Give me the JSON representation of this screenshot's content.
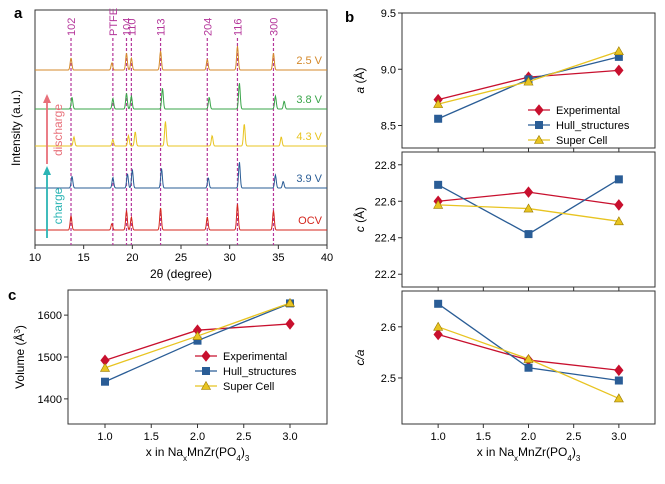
{
  "colors": {
    "experimental": "#c8102e",
    "hull": "#2a5d96",
    "supercell": "#e8c421",
    "peak_marker": "#b4359a",
    "pattern_colors": [
      "#d4261e",
      "#2a5d96",
      "#e8c421",
      "#3aa54a",
      "#d4892b"
    ],
    "charge_arrow": "#2bb5b5",
    "discharge_arrow": "#e8707a"
  },
  "panel_letters": {
    "a": "a",
    "b": "b",
    "c": "c"
  },
  "chart_data": [
    {
      "panel": "a",
      "type": "line",
      "title": "",
      "xlabel": "2θ (degree)",
      "ylabel": "Intensity (a.u.)",
      "xlim": [
        10,
        40
      ],
      "xticks": [
        "10",
        "15",
        "20",
        "25",
        "30",
        "35",
        "40"
      ],
      "xtick_values": [
        10,
        15,
        20,
        25,
        30,
        35,
        40
      ],
      "peak_labels": [
        {
          "label": "102",
          "x": 13.7
        },
        {
          "label": "PTFE",
          "x": 18.0
        },
        {
          "label": "104",
          "x": 19.4
        },
        {
          "label": "110",
          "x": 19.9
        },
        {
          "label": "113",
          "x": 22.9
        },
        {
          "label": "204",
          "x": 27.7
        },
        {
          "label": "116",
          "x": 30.8
        },
        {
          "label": "300",
          "x": 34.5
        }
      ],
      "series": [
        {
          "name": "OCV",
          "color_index": 0,
          "peaks": [
            [
              13.7,
              0.55
            ],
            [
              17.9,
              0.25
            ],
            [
              19.4,
              0.75
            ],
            [
              19.9,
              0.5
            ],
            [
              22.9,
              0.85
            ],
            [
              27.7,
              0.5
            ],
            [
              30.8,
              1.0
            ],
            [
              34.5,
              0.75
            ]
          ]
        },
        {
          "name": "3.9 V",
          "color_index": 1,
          "peaks": [
            [
              13.8,
              0.45
            ],
            [
              18.0,
              0.4
            ],
            [
              19.5,
              0.55
            ],
            [
              20.0,
              0.7
            ],
            [
              23.0,
              0.75
            ],
            [
              27.8,
              0.4
            ],
            [
              31.0,
              1.0
            ],
            [
              34.7,
              0.5
            ],
            [
              35.5,
              0.25
            ]
          ]
        },
        {
          "name": "4.3 V",
          "color_index": 2,
          "peaks": [
            [
              14.0,
              0.35
            ],
            [
              18.0,
              0.25
            ],
            [
              19.6,
              0.4
            ],
            [
              20.3,
              0.55
            ],
            [
              23.4,
              0.95
            ],
            [
              28.2,
              0.4
            ],
            [
              31.5,
              0.85
            ],
            [
              35.3,
              0.35
            ]
          ]
        },
        {
          "name": "3.8 V",
          "color_index": 3,
          "peaks": [
            [
              13.8,
              0.45
            ],
            [
              18.0,
              0.4
            ],
            [
              19.4,
              0.6
            ],
            [
              19.9,
              0.5
            ],
            [
              23.1,
              0.8
            ],
            [
              27.9,
              0.45
            ],
            [
              31.0,
              1.0
            ],
            [
              34.7,
              0.5
            ],
            [
              35.6,
              0.3
            ]
          ]
        },
        {
          "name": "2.5 V",
          "color_index": 4,
          "peaks": [
            [
              13.7,
              0.5
            ],
            [
              17.9,
              0.3
            ],
            [
              19.4,
              0.7
            ],
            [
              19.9,
              0.5
            ],
            [
              22.9,
              0.8
            ],
            [
              27.7,
              0.45
            ],
            [
              30.8,
              1.0
            ],
            [
              34.5,
              0.7
            ]
          ]
        }
      ],
      "annotations": {
        "charge": "charge",
        "discharge": "discharge"
      }
    },
    {
      "panel": "b-top",
      "type": "line",
      "ylabel_italic": "a",
      "ylabel_unit": " (Å)",
      "xlim": [
        0.6,
        3.4
      ],
      "ylim": [
        8.3,
        9.5
      ],
      "yticks": [
        8.5,
        9.0,
        9.5
      ],
      "ytick_labels": [
        "8.5",
        "9.0",
        "9.5"
      ],
      "x": [
        1,
        2,
        3
      ],
      "legend": "lower-right",
      "series": [
        {
          "name": "Experimental",
          "values": [
            8.73,
            8.93,
            8.99
          ],
          "marker": "diamond",
          "color_key": "experimental"
        },
        {
          "name": "Hull_structures",
          "values": [
            8.56,
            8.91,
            9.11
          ],
          "marker": "square",
          "color_key": "hull"
        },
        {
          "name": "Super Cell",
          "values": [
            8.69,
            8.89,
            9.16
          ],
          "marker": "triangle",
          "color_key": "supercell"
        }
      ]
    },
    {
      "panel": "b-middle",
      "type": "line",
      "ylabel_italic": "c",
      "ylabel_unit": " (Å)",
      "xlim": [
        0.6,
        3.4
      ],
      "ylim": [
        22.13,
        22.87
      ],
      "yticks": [
        22.2,
        22.4,
        22.6,
        22.8
      ],
      "ytick_labels": [
        "22.2",
        "22.4",
        "22.6",
        "22.8"
      ],
      "x": [
        1,
        2,
        3
      ],
      "series": [
        {
          "name": "Experimental",
          "values": [
            22.6,
            22.65,
            22.58
          ],
          "marker": "diamond",
          "color_key": "experimental"
        },
        {
          "name": "Hull_structures",
          "values": [
            22.69,
            22.42,
            22.72
          ],
          "marker": "square",
          "color_key": "hull"
        },
        {
          "name": "Super Cell",
          "values": [
            22.58,
            22.56,
            22.49
          ],
          "marker": "triangle",
          "color_key": "supercell"
        }
      ]
    },
    {
      "panel": "b-bottom",
      "type": "line",
      "ylabel_italic": "c/a",
      "ylabel_unit": "",
      "xlabel": "x in Na",
      "xlabel_sub": "x",
      "xlabel_mid": "MnZr(PO",
      "xlabel_sub2": "4",
      "xlabel_end": ")",
      "xlabel_sub3": "3",
      "xlim": [
        0.6,
        3.4
      ],
      "ylim": [
        2.41,
        2.67
      ],
      "yticks": [
        2.5,
        2.6
      ],
      "ytick_labels": [
        "2.5",
        "2.6"
      ],
      "xticks": [
        1.0,
        1.5,
        2.0,
        2.5,
        3.0
      ],
      "xtick_labels": [
        "1.0",
        "1.5",
        "2.0",
        "2.5",
        "3.0"
      ],
      "x": [
        1,
        2,
        3
      ],
      "series": [
        {
          "name": "Experimental",
          "values": [
            2.585,
            2.535,
            2.515
          ],
          "marker": "diamond",
          "color_key": "experimental"
        },
        {
          "name": "Hull_structures",
          "values": [
            2.645,
            2.52,
            2.495
          ],
          "marker": "square",
          "color_key": "hull"
        },
        {
          "name": "Super Cell",
          "values": [
            2.6,
            2.537,
            2.46
          ],
          "marker": "triangle",
          "color_key": "supercell"
        }
      ]
    },
    {
      "panel": "c",
      "type": "line",
      "ylabel": "Volume (Å",
      "ylabel_sup": "3",
      "ylabel_end": ")",
      "xlabel": "x in Na",
      "xlabel_sub": "x",
      "xlabel_mid": "MnZr(PO",
      "xlabel_sub2": "4",
      "xlabel_end": ")",
      "xlabel_sub3": "3",
      "xlim": [
        0.6,
        3.4
      ],
      "ylim": [
        1340,
        1660
      ],
      "yticks": [
        1400,
        1500,
        1600
      ],
      "ytick_labels": [
        "1400",
        "1500",
        "1600"
      ],
      "xticks": [
        1.0,
        1.5,
        2.0,
        2.5,
        3.0
      ],
      "xtick_labels": [
        "1.0",
        "1.5",
        "2.0",
        "2.5",
        "3.0"
      ],
      "x": [
        1,
        2,
        3
      ],
      "legend": "lower-right",
      "series": [
        {
          "name": "Experimental",
          "values": [
            1492,
            1564,
            1579
          ],
          "marker": "diamond",
          "color_key": "experimental"
        },
        {
          "name": "Hull_structures",
          "values": [
            1441,
            1539,
            1628
          ],
          "marker": "square",
          "color_key": "hull"
        },
        {
          "name": "Super Cell",
          "values": [
            1474,
            1550,
            1629
          ],
          "marker": "triangle",
          "color_key": "supercell"
        }
      ]
    }
  ]
}
